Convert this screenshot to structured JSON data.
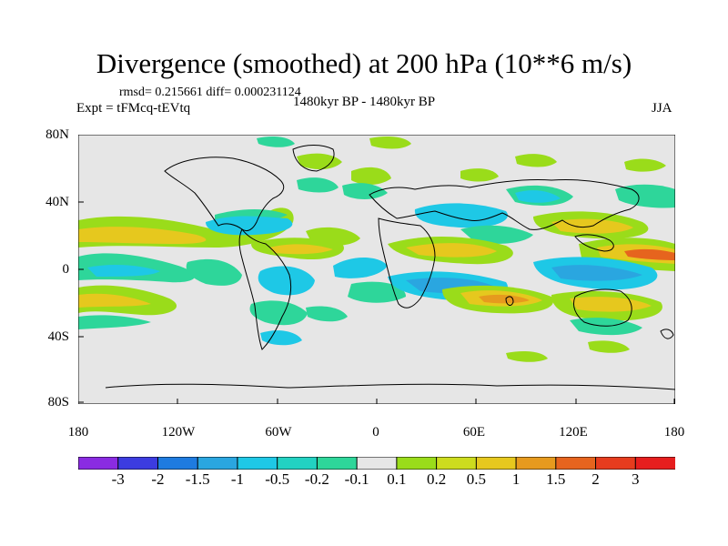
{
  "title": "Divergence (smoothed) at 200 hPa (10**6 m/s)",
  "stats_text": "rmsd= 0.215661 diff= 0.000231124",
  "experiment_text": "Expt = tFMcq-tEVtq",
  "period_text": "1480kyr BP - 1480kyr BP",
  "season": "JJA",
  "lat_labels": [
    "80N",
    "40N",
    "0",
    "40S",
    "80S"
  ],
  "lon_labels": [
    "180",
    "120W",
    "60W",
    "0",
    "60E",
    "120E",
    "180"
  ],
  "colorbar": {
    "labels": [
      "-3",
      "-2",
      "-1.5",
      "-1",
      "-0.5",
      "-0.2",
      "-0.1",
      "0.1",
      "0.2",
      "0.5",
      "1",
      "1.5",
      "2",
      "3"
    ],
    "colors": [
      "#8a2be2",
      "#3c3ce0",
      "#1e7be0",
      "#2aa6e0",
      "#1ec8e6",
      "#22d2c2",
      "#2ed69a",
      "#e6e6e6",
      "#9adc1a",
      "#cddc1e",
      "#e6c81e",
      "#e69a1e",
      "#e6641e",
      "#e63c1e",
      "#e61e1e"
    ]
  },
  "colors": {
    "background": "#e6e6e6",
    "coast": "#000000"
  }
}
